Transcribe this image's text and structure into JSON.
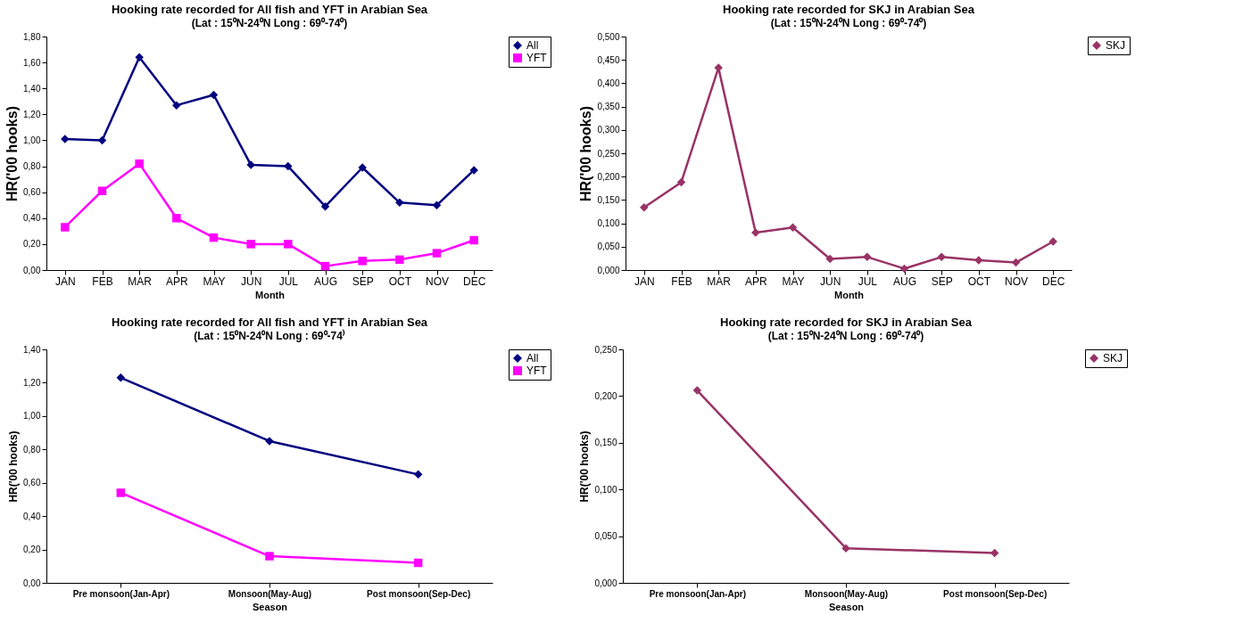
{
  "chart_data": [
    {
      "type": "line",
      "title": "Hooking rate recorded for All fish and YFT in Arabian  Sea",
      "subtitle": "(Lat : 15⁰N-24⁰N   Long : 69⁰-74⁰)",
      "xlabel": "Month",
      "ylabel": "HR('00 hooks)",
      "categories": [
        "JAN",
        "FEB",
        "MAR",
        "APR",
        "MAY",
        "JUN",
        "JUL",
        "AUG",
        "SEP",
        "OCT",
        "NOV",
        "DEC"
      ],
      "ylim": [
        0,
        1.8
      ],
      "yticks": [
        {
          "value": 0,
          "label": "0,00"
        },
        {
          "value": 0.2,
          "label": "0,20"
        },
        {
          "value": 0.4,
          "label": "0,40"
        },
        {
          "value": 0.6,
          "label": "0,60"
        },
        {
          "value": 0.8,
          "label": "0,80"
        },
        {
          "value": 1.0,
          "label": "1,00"
        },
        {
          "value": 1.2,
          "label": "1,20"
        },
        {
          "value": 1.4,
          "label": "1,40"
        },
        {
          "value": 1.6,
          "label": "1,60"
        },
        {
          "value": 1.8,
          "label": "1,80"
        }
      ],
      "legend": "right",
      "series": [
        {
          "name": "All",
          "color": "#000080",
          "marker": "diamond",
          "values": [
            1.01,
            1.0,
            1.64,
            1.27,
            1.35,
            0.81,
            0.8,
            0.49,
            0.79,
            0.52,
            0.5,
            0.77
          ]
        },
        {
          "name": "YFT",
          "color": "#ff00ff",
          "marker": "square",
          "values": [
            0.33,
            0.61,
            0.82,
            0.4,
            0.25,
            0.2,
            0.2,
            0.03,
            0.07,
            0.08,
            0.13,
            0.23
          ]
        }
      ]
    },
    {
      "type": "line",
      "title": "Hooking rate recorded  for SKJ in Arabian Sea",
      "subtitle": "(Lat : 15⁰N-24⁰N   Long : 69⁰-74⁰)",
      "xlabel": "Month",
      "ylabel": "HR('00 hooks)",
      "categories": [
        "JAN",
        "FEB",
        "MAR",
        "APR",
        "MAY",
        "JUN",
        "JUL",
        "AUG",
        "SEP",
        "OCT",
        "NOV",
        "DEC"
      ],
      "ylim": [
        0,
        0.5
      ],
      "yticks": [
        {
          "value": 0,
          "label": "0,000"
        },
        {
          "value": 0.05,
          "label": "0,050"
        },
        {
          "value": 0.1,
          "label": "0,100"
        },
        {
          "value": 0.15,
          "label": "0,150"
        },
        {
          "value": 0.2,
          "label": "0,200"
        },
        {
          "value": 0.25,
          "label": "0,250"
        },
        {
          "value": 0.3,
          "label": "0,300"
        },
        {
          "value": 0.35,
          "label": "0,350"
        },
        {
          "value": 0.4,
          "label": "0,400"
        },
        {
          "value": 0.45,
          "label": "0,450"
        },
        {
          "value": 0.5,
          "label": "0,500"
        }
      ],
      "legend": "right",
      "series": [
        {
          "name": "SKJ",
          "color": "#993366",
          "marker": "diamond",
          "values": [
            0.134,
            0.188,
            0.433,
            0.08,
            0.091,
            0.024,
            0.028,
            0.003,
            0.028,
            0.021,
            0.016,
            0.061
          ]
        }
      ]
    },
    {
      "type": "line",
      "title": "Hooking rate recorded for All fish and YFT in Arabian  Sea",
      "subtitle": "(Lat : 15⁰N-24⁰N   Long : 69⁰-74⁾",
      "xlabel": "Season",
      "ylabel": "HR('00 hooks)",
      "categories": [
        "Pre monsoon(Jan-Apr)",
        "Monsoon(May-Aug)",
        "Post monsoon(Sep-Dec)"
      ],
      "ylim": [
        0,
        1.4
      ],
      "yticks": [
        {
          "value": 0,
          "label": "0,00"
        },
        {
          "value": 0.2,
          "label": "0,20"
        },
        {
          "value": 0.4,
          "label": "0,40"
        },
        {
          "value": 0.6,
          "label": "0,60"
        },
        {
          "value": 0.8,
          "label": "0,80"
        },
        {
          "value": 1.0,
          "label": "1,00"
        },
        {
          "value": 1.2,
          "label": "1,20"
        },
        {
          "value": 1.4,
          "label": "1,40"
        }
      ],
      "legend": "right",
      "series": [
        {
          "name": "All",
          "color": "#000080",
          "marker": "diamond",
          "values": [
            1.23,
            0.85,
            0.65
          ]
        },
        {
          "name": "YFT",
          "color": "#ff00ff",
          "marker": "square",
          "values": [
            0.54,
            0.16,
            0.12
          ]
        }
      ]
    },
    {
      "type": "line",
      "title": "Hooking rate recorded  for SKJ in Arabian Sea",
      "subtitle": "(Lat : 15⁰N-24⁰N   Long : 69⁰-74⁰)",
      "xlabel": "Season",
      "ylabel": "HR('00 hooks)",
      "categories": [
        "Pre monsoon(Jan-Apr)",
        "Monsoon(May-Aug)",
        "Post monsoon(Sep-Dec)"
      ],
      "ylim": [
        0,
        0.25
      ],
      "yticks": [
        {
          "value": 0,
          "label": "0,000"
        },
        {
          "value": 0.05,
          "label": "0,050"
        },
        {
          "value": 0.1,
          "label": "0,100"
        },
        {
          "value": 0.15,
          "label": "0,150"
        },
        {
          "value": 0.2,
          "label": "0,200"
        },
        {
          "value": 0.25,
          "label": "0,250"
        }
      ],
      "legend": "right",
      "series": [
        {
          "name": "SKJ",
          "color": "#993366",
          "marker": "diamond",
          "values": [
            0.206,
            0.037,
            0.032
          ]
        }
      ]
    }
  ]
}
